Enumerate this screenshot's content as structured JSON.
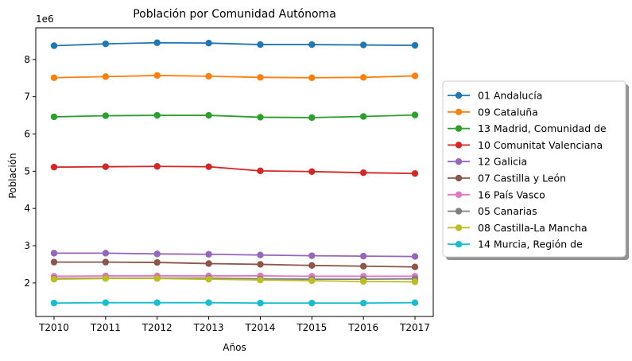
{
  "chart_data": {
    "type": "line",
    "title": "Población por Comunidad Autónoma",
    "xlabel": "Años",
    "ylabel": "Población",
    "y_offset_label": "1e6",
    "categories": [
      "T2010",
      "T2011",
      "T2012",
      "T2013",
      "T2014",
      "T2015",
      "T2016",
      "T2017"
    ],
    "ylim": [
      1.1,
      8.85
    ],
    "yticks": [
      2,
      3,
      4,
      5,
      6,
      7,
      8
    ],
    "grid": false,
    "legend_position": "center-right",
    "series": [
      {
        "name": "01 Andalucía",
        "color": "#1f77b4",
        "values": [
          8.37,
          8.42,
          8.45,
          8.44,
          8.4,
          8.4,
          8.39,
          8.38
        ]
      },
      {
        "name": "09 Cataluña",
        "color": "#ff7f0e",
        "values": [
          7.51,
          7.54,
          7.57,
          7.55,
          7.52,
          7.51,
          7.52,
          7.56
        ]
      },
      {
        "name": "13 Madrid, Comunidad de",
        "color": "#2ca02c",
        "values": [
          6.46,
          6.49,
          6.5,
          6.5,
          6.45,
          6.44,
          6.47,
          6.51
        ]
      },
      {
        "name": "10 Comunitat Valenciana",
        "color": "#d62728",
        "values": [
          5.11,
          5.12,
          5.13,
          5.12,
          5.01,
          4.99,
          4.96,
          4.94
        ]
      },
      {
        "name": "12 Galicia",
        "color": "#9467bd",
        "values": [
          2.8,
          2.8,
          2.78,
          2.77,
          2.75,
          2.73,
          2.72,
          2.71
        ]
      },
      {
        "name": "07 Castilla y León",
        "color": "#8c564b",
        "values": [
          2.56,
          2.56,
          2.55,
          2.52,
          2.5,
          2.47,
          2.45,
          2.43
        ]
      },
      {
        "name": "16 País Vasco",
        "color": "#e377c2",
        "values": [
          2.18,
          2.19,
          2.19,
          2.19,
          2.19,
          2.18,
          2.18,
          2.18
        ]
      },
      {
        "name": "05 Canarias",
        "color": "#7f7f7f",
        "values": [
          2.12,
          2.13,
          2.13,
          2.13,
          2.11,
          2.1,
          2.1,
          2.11
        ]
      },
      {
        "name": "08 Castilla-La Mancha",
        "color": "#bcbd22",
        "values": [
          2.1,
          2.12,
          2.12,
          2.1,
          2.08,
          2.06,
          2.04,
          2.03
        ]
      },
      {
        "name": "14 Murcia, Región de",
        "color": "#17becf",
        "values": [
          1.46,
          1.47,
          1.47,
          1.47,
          1.46,
          1.46,
          1.46,
          1.47
        ]
      }
    ]
  }
}
